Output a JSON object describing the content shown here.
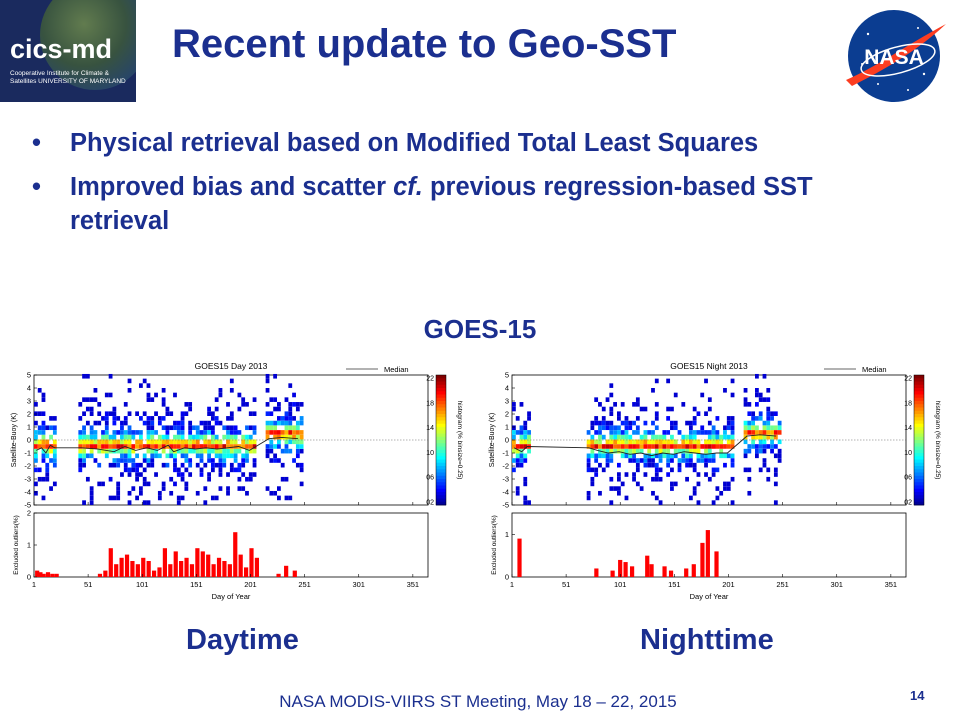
{
  "logo": {
    "mark": "cics-md",
    "subtitle": "Cooperative Institute for Climate & Satellites UNIVERSITY OF MARYLAND"
  },
  "nasa_logo": {
    "text": "NASA"
  },
  "title": "Recent update to Geo-SST",
  "bullets": [
    {
      "text": "Physical retrieval based on Modified Total Least Squares"
    },
    {
      "pre": "Improved bias and scatter ",
      "em": "cf.",
      "post": " previous regression-based SST retrieval"
    }
  ],
  "section_label": "GOES-15",
  "panel_labels": {
    "left": "Daytime",
    "right": "Nighttime"
  },
  "footer": "NASA MODIS-VIIRS ST Meeting, May 18 – 22, 2015",
  "page_number": "14",
  "colors": {
    "title_blue": "#1b2f8f",
    "bar_red": "#ff0000",
    "median_line": "#333333"
  },
  "chart_data": [
    {
      "type": "heatmap",
      "title": "GOES15  Day  2013",
      "ylabel": "Satellite-Buoy (K)",
      "legend": {
        "label": "Median",
        "placement": "top-right"
      },
      "colorbar": {
        "label": "histogram (% binsize=0.25)",
        "ticks": [
          "22",
          "18",
          "14",
          "10",
          "06",
          "02"
        ]
      },
      "x_ticks": [
        "1",
        "51",
        "101",
        "151",
        "201",
        "251",
        "301",
        "351"
      ],
      "y_ticks": [
        "5",
        "4",
        "3",
        "2",
        "1",
        "0",
        "-1",
        "-2",
        "-3",
        "-4",
        "-5"
      ],
      "xlim": [
        1,
        365
      ],
      "ylim": [
        -5,
        5
      ],
      "day_ranges": [
        [
          1,
          22
        ],
        [
          42,
          205
        ],
        [
          215,
          250
        ]
      ],
      "median": [
        [
          3,
          -0.8
        ],
        [
          8,
          -0.6
        ],
        [
          12,
          -1.0
        ],
        [
          16,
          -0.4
        ],
        [
          20,
          -0.6
        ],
        [
          45,
          -0.6
        ],
        [
          60,
          -0.7
        ],
        [
          75,
          -0.9
        ],
        [
          85,
          -0.5
        ],
        [
          95,
          -0.8
        ],
        [
          105,
          -0.6
        ],
        [
          115,
          -0.8
        ],
        [
          125,
          -0.4
        ],
        [
          130,
          -0.9
        ],
        [
          140,
          -0.6
        ],
        [
          150,
          -0.7
        ],
        [
          160,
          -0.6
        ],
        [
          170,
          -0.7
        ],
        [
          180,
          -0.6
        ],
        [
          190,
          -0.5
        ],
        [
          200,
          -0.8
        ],
        [
          218,
          0.1
        ],
        [
          230,
          0.2
        ],
        [
          245,
          0.1
        ]
      ]
    },
    {
      "type": "bar",
      "ylabel": "Excluded outliers(%)",
      "xlabel": "Day of Year",
      "x_ticks": [
        "1",
        "51",
        "101",
        "151",
        "201",
        "251",
        "301",
        "351"
      ],
      "y_ticks": [
        "2",
        "1",
        "0"
      ],
      "xlim": [
        1,
        365
      ],
      "ylim": [
        0,
        2
      ],
      "x": [
        2,
        5,
        8,
        12,
        16,
        20,
        60,
        65,
        70,
        75,
        80,
        85,
        90,
        95,
        100,
        105,
        110,
        115,
        120,
        125,
        130,
        135,
        140,
        145,
        150,
        155,
        160,
        165,
        170,
        175,
        180,
        185,
        190,
        195,
        200,
        205,
        225,
        232,
        240
      ],
      "values": [
        0.2,
        0.15,
        0.1,
        0.15,
        0.1,
        0.1,
        0.1,
        0.2,
        0.9,
        0.4,
        0.6,
        0.7,
        0.5,
        0.4,
        0.6,
        0.5,
        0.2,
        0.3,
        0.9,
        0.4,
        0.8,
        0.5,
        0.6,
        0.4,
        0.9,
        0.8,
        0.7,
        0.4,
        0.6,
        0.5,
        0.4,
        1.4,
        0.7,
        0.3,
        0.9,
        0.6,
        0.1,
        0.35,
        0.2
      ]
    },
    {
      "type": "heatmap",
      "title": "GOES15  Night  2013",
      "ylabel": "Satellite-Buoy (K)",
      "legend": {
        "label": "Median",
        "placement": "top-right"
      },
      "colorbar": {
        "label": "histogram (% binsize=0.25)",
        "ticks": [
          "22",
          "18",
          "14",
          "10",
          "06",
          "02"
        ]
      },
      "x_ticks": [
        "1",
        "51",
        "101",
        "151",
        "201",
        "251",
        "301",
        "351"
      ],
      "y_ticks": [
        "5",
        "4",
        "3",
        "2",
        "1",
        "0",
        "-1",
        "-2",
        "-3",
        "-4",
        "-5"
      ],
      "xlim": [
        1,
        365
      ],
      "ylim": [
        -5,
        5
      ],
      "day_ranges": [
        [
          1,
          18
        ],
        [
          70,
          205
        ],
        [
          215,
          250
        ]
      ],
      "median": [
        [
          3,
          -0.6
        ],
        [
          10,
          -0.9
        ],
        [
          15,
          -0.5
        ],
        [
          72,
          -0.6
        ],
        [
          80,
          -0.8
        ],
        [
          90,
          -1.0
        ],
        [
          100,
          -0.9
        ],
        [
          110,
          -1.1
        ],
        [
          120,
          -1.0
        ],
        [
          130,
          -1.2
        ],
        [
          140,
          -1.0
        ],
        [
          150,
          -1.1
        ],
        [
          160,
          -0.9
        ],
        [
          170,
          -1.0
        ],
        [
          180,
          -1.1
        ],
        [
          190,
          -1.0
        ],
        [
          200,
          -1.0
        ],
        [
          218,
          0.3
        ],
        [
          230,
          0.4
        ],
        [
          245,
          0.3
        ]
      ]
    },
    {
      "type": "bar",
      "ylabel": "Excluded outliers(%)",
      "xlabel": "Day of Year",
      "x_ticks": [
        "1",
        "51",
        "101",
        "151",
        "201",
        "251",
        "301",
        "351"
      ],
      "y_ticks": [
        "1",
        "0"
      ],
      "xlim": [
        1,
        365
      ],
      "ylim": [
        0,
        1.5
      ],
      "x": [
        6,
        77,
        92,
        99,
        104,
        110,
        124,
        128,
        140,
        146,
        160,
        167,
        175,
        180,
        188
      ],
      "values": [
        0.9,
        0.2,
        0.15,
        0.4,
        0.35,
        0.25,
        0.5,
        0.3,
        0.25,
        0.15,
        0.2,
        0.3,
        0.8,
        1.1,
        0.6
      ]
    }
  ]
}
